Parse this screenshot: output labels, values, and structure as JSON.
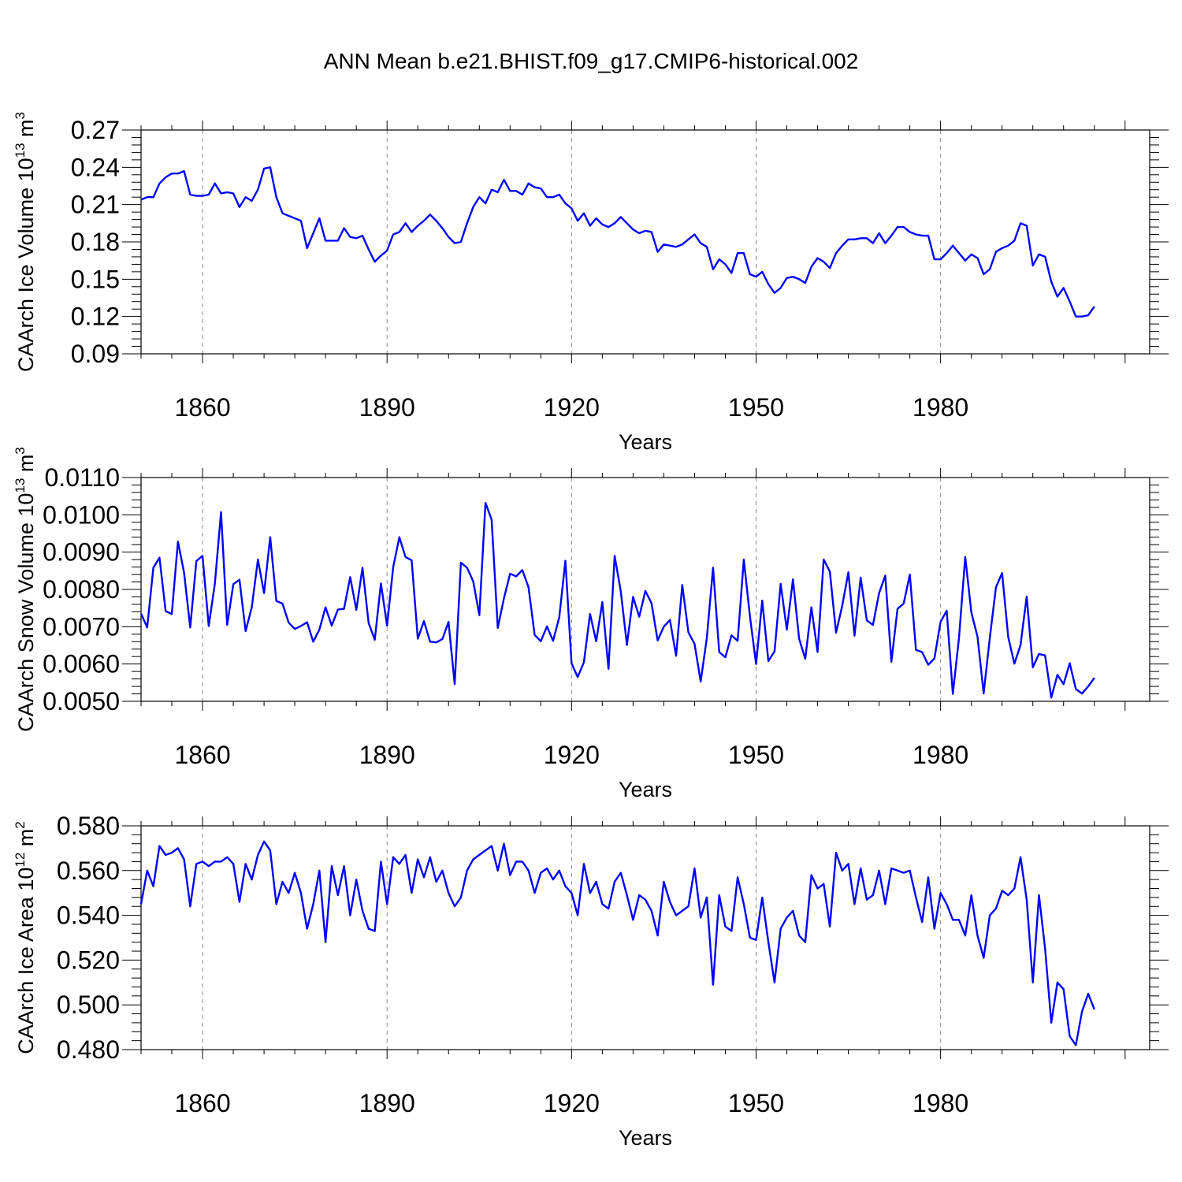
{
  "title": "ANN Mean b.e21.BHIST.f09_g17.CMIP6-historical.002",
  "chart_data": [
    {
      "type": "line",
      "title": "ANN Mean b.e21.BHIST.f09_g17.CMIP6-historical.002",
      "xlabel": "Years",
      "ylabel": "CAArch Ice Volume 10",
      "ylabel_exp": "13",
      "ylabel_unit": " m",
      "ylabel_unit_exp": "3",
      "xlim": [
        1850,
        2014
      ],
      "ylim": [
        0.09,
        0.27
      ],
      "xticks": [
        1860,
        1890,
        1920,
        1950,
        1980
      ],
      "xtick_labels": [
        "1860",
        "1890",
        "1920",
        "1950",
        "1980"
      ],
      "yticks": [
        0.09,
        0.12,
        0.15,
        0.18,
        0.21,
        0.24,
        0.27
      ],
      "ytick_labels": [
        "0.09",
        "0.12",
        "0.15",
        "0.18",
        "0.21",
        "0.24",
        "0.27"
      ],
      "color": "#0000ff",
      "x_start": 1850,
      "values": [
        0.214,
        0.216,
        0.216,
        0.227,
        0.232,
        0.235,
        0.235,
        0.237,
        0.218,
        0.217,
        0.217,
        0.218,
        0.227,
        0.219,
        0.22,
        0.219,
        0.208,
        0.216,
        0.213,
        0.222,
        0.239,
        0.24,
        0.216,
        0.203,
        0.201,
        0.199,
        0.197,
        0.175,
        0.187,
        0.199,
        0.181,
        0.181,
        0.181,
        0.191,
        0.184,
        0.183,
        0.185,
        0.174,
        0.164,
        0.169,
        0.173,
        0.186,
        0.188,
        0.195,
        0.188,
        0.193,
        0.197,
        0.202,
        0.197,
        0.191,
        0.184,
        0.179,
        0.18,
        0.195,
        0.208,
        0.216,
        0.211,
        0.222,
        0.22,
        0.23,
        0.221,
        0.221,
        0.218,
        0.227,
        0.224,
        0.223,
        0.216,
        0.216,
        0.218,
        0.211,
        0.207,
        0.197,
        0.203,
        0.193,
        0.199,
        0.194,
        0.192,
        0.195,
        0.2,
        0.195,
        0.19,
        0.187,
        0.189,
        0.188,
        0.172,
        0.178,
        0.177,
        0.176,
        0.178,
        0.182,
        0.186,
        0.179,
        0.176,
        0.158,
        0.166,
        0.162,
        0.155,
        0.171,
        0.171,
        0.154,
        0.152,
        0.156,
        0.146,
        0.139,
        0.143,
        0.151,
        0.152,
        0.15,
        0.147,
        0.16,
        0.167,
        0.164,
        0.159,
        0.171,
        0.177,
        0.182,
        0.182,
        0.183,
        0.183,
        0.179,
        0.187,
        0.179,
        0.185,
        0.192,
        0.192,
        0.188,
        0.186,
        0.185,
        0.185,
        0.166,
        0.166,
        0.171,
        0.177,
        0.171,
        0.165,
        0.17,
        0.167,
        0.154,
        0.158,
        0.172,
        0.175,
        0.177,
        0.181,
        0.195,
        0.193,
        0.161,
        0.17,
        0.168,
        0.148,
        0.136,
        0.143,
        0.132,
        0.12,
        0.12,
        0.121,
        0.128
      ]
    },
    {
      "type": "line",
      "xlabel": "Years",
      "ylabel": "CAArch Snow Volume 10",
      "ylabel_exp": "13",
      "ylabel_unit": " m",
      "ylabel_unit_exp": "3",
      "xlim": [
        1850,
        2014
      ],
      "ylim": [
        0.005,
        0.011
      ],
      "xticks": [
        1860,
        1890,
        1920,
        1950,
        1980
      ],
      "xtick_labels": [
        "1860",
        "1890",
        "1920",
        "1950",
        "1980"
      ],
      "yticks": [
        0.005,
        0.006,
        0.007,
        0.008,
        0.009,
        0.01,
        0.011
      ],
      "ytick_labels": [
        "0.0050",
        "0.0060",
        "0.0070",
        "0.0080",
        "0.0090",
        "0.0100",
        "0.0110"
      ],
      "color": "#0000ff",
      "x_start": 1850,
      "values": [
        0.00735,
        0.00698,
        0.00858,
        0.00885,
        0.00742,
        0.00734,
        0.00928,
        0.00845,
        0.00698,
        0.00876,
        0.0089,
        0.00702,
        0.00816,
        0.01007,
        0.00705,
        0.00814,
        0.00826,
        0.00688,
        0.00752,
        0.0088,
        0.0079,
        0.0094,
        0.00769,
        0.00762,
        0.00711,
        0.00694,
        0.00702,
        0.00712,
        0.0066,
        0.00692,
        0.00752,
        0.00703,
        0.00746,
        0.00748,
        0.00833,
        0.00745,
        0.00858,
        0.0071,
        0.00665,
        0.00816,
        0.00703,
        0.0086,
        0.0094,
        0.00887,
        0.00878,
        0.00668,
        0.00715,
        0.0066,
        0.00658,
        0.00667,
        0.00713,
        0.00546,
        0.00872,
        0.00858,
        0.00822,
        0.00731,
        0.01032,
        0.00987,
        0.00697,
        0.00776,
        0.00842,
        0.00835,
        0.00852,
        0.00806,
        0.00678,
        0.00661,
        0.00701,
        0.00662,
        0.00725,
        0.00877,
        0.00602,
        0.00565,
        0.00605,
        0.00734,
        0.00661,
        0.00766,
        0.00587,
        0.0089,
        0.00795,
        0.00651,
        0.0078,
        0.00727,
        0.00796,
        0.00763,
        0.00663,
        0.007,
        0.00718,
        0.00622,
        0.00812,
        0.00685,
        0.00654,
        0.00553,
        0.0067,
        0.00858,
        0.00632,
        0.00618,
        0.00677,
        0.00662,
        0.0088,
        0.00728,
        0.006,
        0.0077,
        0.00608,
        0.00634,
        0.00815,
        0.00692,
        0.00827,
        0.00668,
        0.00614,
        0.00752,
        0.00632,
        0.0088,
        0.00848,
        0.00684,
        0.00756,
        0.00846,
        0.00676,
        0.00832,
        0.00717,
        0.00705,
        0.0079,
        0.00837,
        0.00606,
        0.00748,
        0.00762,
        0.0084,
        0.00638,
        0.00632,
        0.00598,
        0.00615,
        0.00713,
        0.00743,
        0.0052,
        0.0067,
        0.00887,
        0.00738,
        0.00673,
        0.00521,
        0.0067,
        0.00806,
        0.00844,
        0.00672,
        0.00601,
        0.00651,
        0.00781,
        0.00591,
        0.00627,
        0.00623,
        0.0051,
        0.00571,
        0.00546,
        0.00602,
        0.00533,
        0.00521,
        0.0054,
        0.00563
      ]
    },
    {
      "type": "line",
      "xlabel": "Years",
      "ylabel": "CAArch Ice Area 10",
      "ylabel_exp": "12",
      "ylabel_unit": " m",
      "ylabel_unit_exp": "2",
      "xlim": [
        1850,
        2014
      ],
      "ylim": [
        0.48,
        0.58
      ],
      "xticks": [
        1860,
        1890,
        1920,
        1950,
        1980
      ],
      "xtick_labels": [
        "1860",
        "1890",
        "1920",
        "1950",
        "1980"
      ],
      "yticks": [
        0.48,
        0.5,
        0.52,
        0.54,
        0.56,
        0.58
      ],
      "ytick_labels": [
        "0.480",
        "0.500",
        "0.520",
        "0.540",
        "0.560",
        "0.580"
      ],
      "color": "#0000ff",
      "x_start": 1850,
      "values": [
        0.545,
        0.56,
        0.553,
        0.571,
        0.567,
        0.568,
        0.57,
        0.565,
        0.544,
        0.563,
        0.564,
        0.562,
        0.564,
        0.564,
        0.566,
        0.563,
        0.546,
        0.563,
        0.556,
        0.567,
        0.573,
        0.569,
        0.545,
        0.555,
        0.55,
        0.559,
        0.55,
        0.534,
        0.545,
        0.56,
        0.528,
        0.562,
        0.549,
        0.562,
        0.54,
        0.556,
        0.542,
        0.534,
        0.533,
        0.564,
        0.545,
        0.566,
        0.563,
        0.567,
        0.55,
        0.565,
        0.557,
        0.566,
        0.555,
        0.56,
        0.55,
        0.544,
        0.548,
        0.56,
        0.565,
        0.567,
        0.569,
        0.571,
        0.56,
        0.572,
        0.558,
        0.564,
        0.564,
        0.56,
        0.55,
        0.559,
        0.561,
        0.556,
        0.56,
        0.553,
        0.55,
        0.54,
        0.563,
        0.55,
        0.555,
        0.545,
        0.543,
        0.555,
        0.559,
        0.549,
        0.538,
        0.549,
        0.547,
        0.542,
        0.531,
        0.555,
        0.546,
        0.54,
        0.542,
        0.544,
        0.561,
        0.539,
        0.548,
        0.509,
        0.549,
        0.535,
        0.533,
        0.557,
        0.545,
        0.53,
        0.529,
        0.548,
        0.528,
        0.51,
        0.534,
        0.539,
        0.542,
        0.531,
        0.528,
        0.558,
        0.552,
        0.554,
        0.535,
        0.568,
        0.56,
        0.563,
        0.545,
        0.561,
        0.547,
        0.549,
        0.56,
        0.545,
        0.561,
        0.56,
        0.559,
        0.56,
        0.548,
        0.537,
        0.557,
        0.534,
        0.55,
        0.545,
        0.538,
        0.538,
        0.531,
        0.549,
        0.531,
        0.521,
        0.54,
        0.543,
        0.551,
        0.549,
        0.552,
        0.566,
        0.547,
        0.51,
        0.549,
        0.525,
        0.492,
        0.51,
        0.507,
        0.486,
        0.482,
        0.497,
        0.505,
        0.498
      ]
    }
  ]
}
